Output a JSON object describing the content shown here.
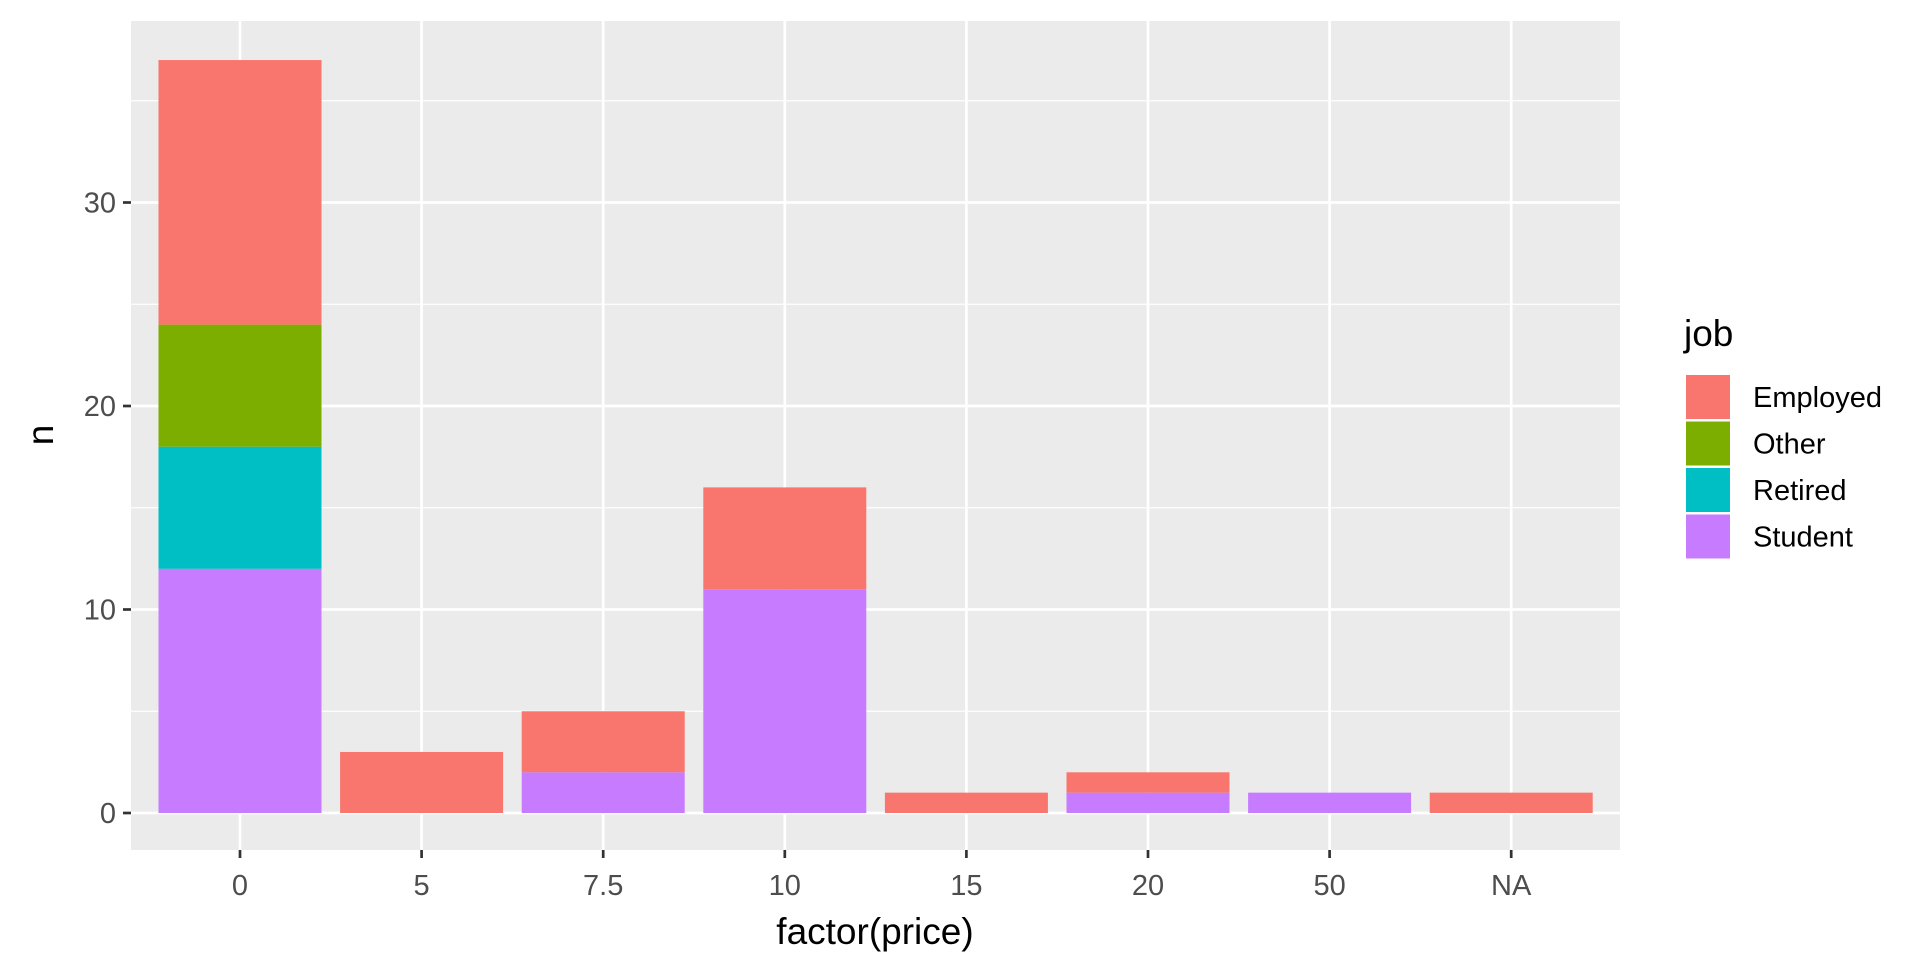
{
  "chart_data": {
    "type": "bar",
    "stacked": true,
    "title": "",
    "xlabel": "factor(price)",
    "ylabel": "n",
    "categories": [
      "0",
      "5",
      "7.5",
      "10",
      "15",
      "20",
      "50",
      "NA"
    ],
    "ylim": [
      0,
      37
    ],
    "yticks": [
      0,
      10,
      20,
      30
    ],
    "grid": true,
    "legend": {
      "title": "job",
      "position": "right"
    },
    "series": [
      {
        "name": "Employed",
        "color": "#F8766D",
        "values": [
          13,
          3,
          3,
          5,
          1,
          1,
          0,
          1
        ]
      },
      {
        "name": "Other",
        "color": "#7CAE00",
        "values": [
          6,
          0,
          0,
          0,
          0,
          0,
          0,
          0
        ]
      },
      {
        "name": "Retired",
        "color": "#00BFC4",
        "values": [
          6,
          0,
          0,
          0,
          0,
          0,
          0,
          0
        ]
      },
      {
        "name": "Student",
        "color": "#C77CFF",
        "values": [
          12,
          0,
          2,
          11,
          0,
          1,
          1,
          0
        ]
      }
    ]
  }
}
